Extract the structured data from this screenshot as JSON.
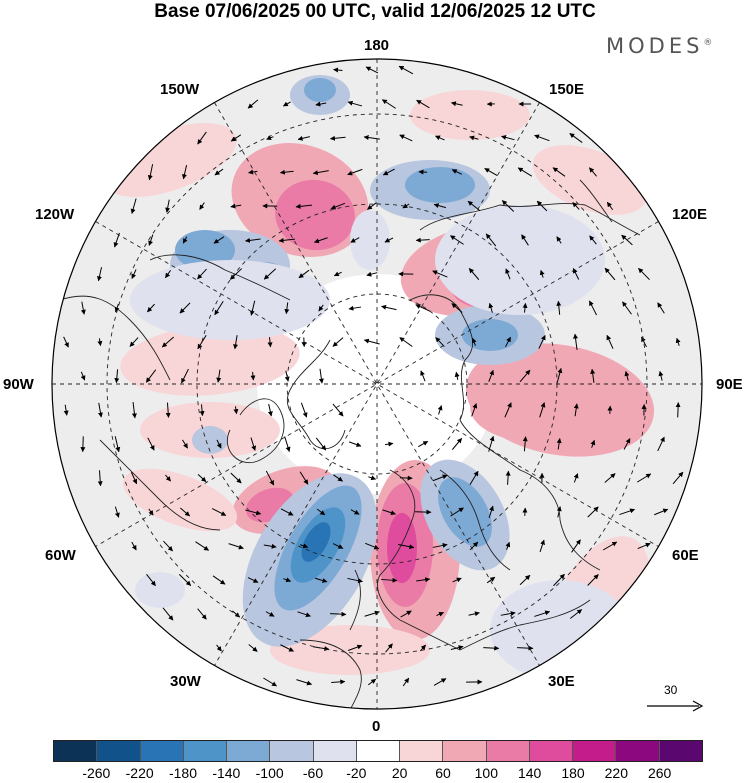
{
  "title": "Base 07/06/2025 00 UTC, valid 12/06/2025 12 UTC",
  "brand": "MODES",
  "brand_mark": "®",
  "longitude_labels": {
    "top": "180",
    "bottom": "0",
    "left": "90W",
    "right": "90E",
    "upper_left": "150W",
    "upper_right": "150E",
    "mid_upper_left": "120W",
    "mid_upper_right": "120E",
    "mid_lower_left": "60W",
    "mid_lower_right": "60E",
    "lower_left": "30W",
    "lower_right": "30E"
  },
  "reference_vector": {
    "value": "30"
  },
  "colorbar": {
    "colors": [
      "#0c3355",
      "#12528a",
      "#2874b4",
      "#4f94c9",
      "#7da9d5",
      "#b8c6df",
      "#dfe1ee",
      "#ffffff",
      "#f8d6d7",
      "#f1a8b5",
      "#ea7ba6",
      "#e04c9d",
      "#c41d8b",
      "#8c087f",
      "#5a0770"
    ],
    "ticks": [
      "-260",
      "-220",
      "-180",
      "-140",
      "-100",
      "-60",
      "-20",
      "20",
      "60",
      "100",
      "140",
      "180",
      "220",
      "260"
    ]
  },
  "map": {
    "projection": "north polar stereographic",
    "continent_outline_color": "#222222",
    "grid_line_color": "#222222",
    "pole_mask_color": "#ffffff"
  }
}
